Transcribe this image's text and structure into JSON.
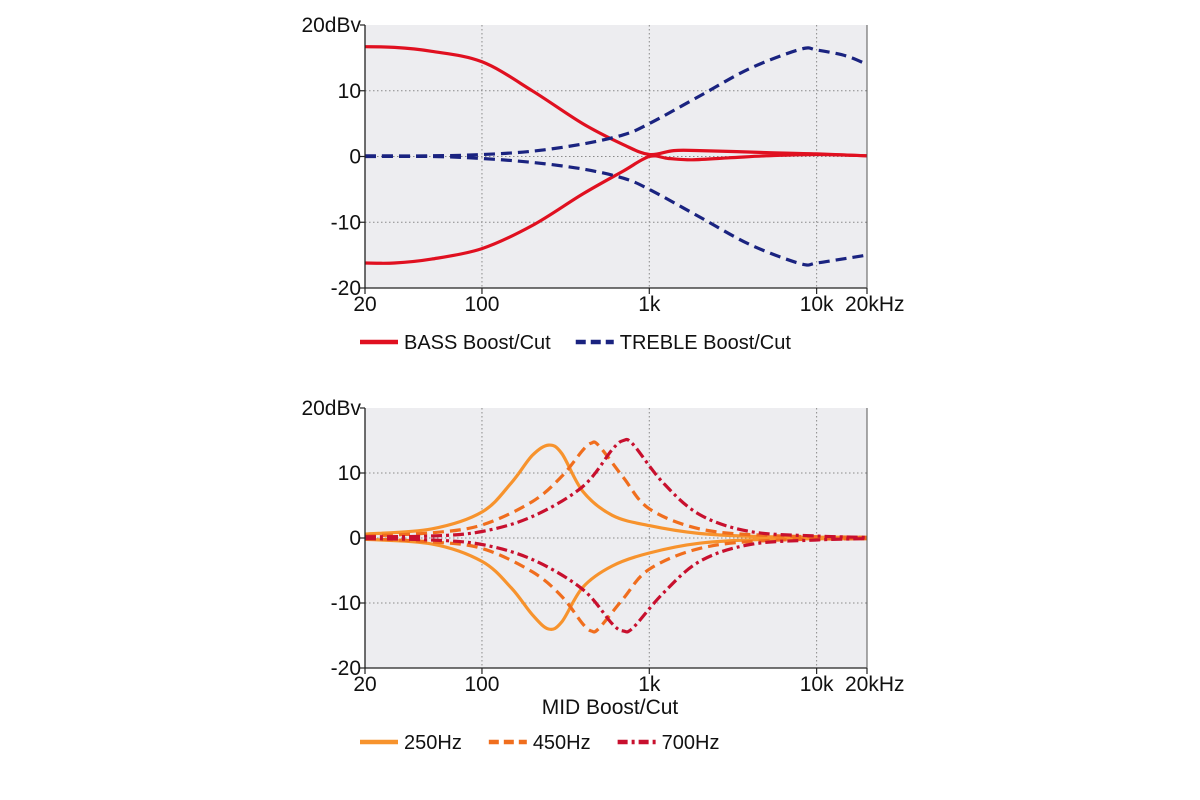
{
  "chart_data": [
    {
      "type": "line",
      "x_scale": "log",
      "xlim": [
        20,
        20000
      ],
      "ylim": [
        -20,
        20
      ],
      "x_ticks": [
        {
          "value": 20,
          "label": "20"
        },
        {
          "value": 100,
          "label": "100"
        },
        {
          "value": 1000,
          "label": "1k"
        },
        {
          "value": 10000,
          "label": "10k"
        },
        {
          "value": 20000,
          "label": "20kHz"
        }
      ],
      "y_ticks": [
        {
          "value": 20,
          "label": "20dBv"
        },
        {
          "value": 10,
          "label": "10"
        },
        {
          "value": 0,
          "label": "0"
        },
        {
          "value": -10,
          "label": "-10"
        },
        {
          "value": -20,
          "label": "-20"
        }
      ],
      "xlabel": "",
      "grid": true,
      "legend_placement": "bottom",
      "series": [
        {
          "name": "BASS Boost/Cut",
          "legend": true,
          "color": "#e01020",
          "style": "solid",
          "points": [
            [
              20,
              16.7
            ],
            [
              30,
              16.6
            ],
            [
              50,
              16.0
            ],
            [
              100,
              14.4
            ],
            [
              200,
              10.0
            ],
            [
              400,
              5.0
            ],
            [
              700,
              1.8
            ],
            [
              1000,
              0.3
            ],
            [
              1400,
              0.9
            ],
            [
              2000,
              0.9
            ],
            [
              5000,
              0.6
            ],
            [
              10000,
              0.4
            ],
            [
              20000,
              0.1
            ]
          ]
        },
        {
          "name": "BASS Boost/Cut",
          "legend": false,
          "color": "#e01020",
          "style": "solid",
          "points": [
            [
              20,
              -16.2
            ],
            [
              30,
              -16.2
            ],
            [
              50,
              -15.6
            ],
            [
              100,
              -14.0
            ],
            [
              200,
              -10.5
            ],
            [
              400,
              -5.7
            ],
            [
              700,
              -2.2
            ],
            [
              1000,
              0.0
            ],
            [
              1300,
              -0.3
            ],
            [
              1800,
              -0.5
            ],
            [
              3000,
              -0.2
            ],
            [
              5000,
              0.1
            ],
            [
              10000,
              0.3
            ],
            [
              20000,
              0.1
            ]
          ]
        },
        {
          "name": "TREBLE Boost/Cut",
          "legend": true,
          "color": "#1a2380",
          "style": "dashed",
          "points": [
            [
              20,
              0.1
            ],
            [
              50,
              0.1
            ],
            [
              100,
              0.3
            ],
            [
              200,
              0.8
            ],
            [
              400,
              1.9
            ],
            [
              700,
              3.3
            ],
            [
              1000,
              5.0
            ],
            [
              2000,
              9.2
            ],
            [
              4000,
              13.4
            ],
            [
              8000,
              16.3
            ],
            [
              10000,
              16.2
            ],
            [
              15000,
              15.3
            ],
            [
              20000,
              14.0
            ]
          ]
        },
        {
          "name": "TREBLE Boost/Cut",
          "legend": false,
          "color": "#1a2380",
          "style": "dashed",
          "points": [
            [
              20,
              0.0
            ],
            [
              50,
              0.0
            ],
            [
              100,
              -0.3
            ],
            [
              200,
              -0.9
            ],
            [
              400,
              -1.9
            ],
            [
              700,
              -3.3
            ],
            [
              1000,
              -5.0
            ],
            [
              2000,
              -9.2
            ],
            [
              4000,
              -13.4
            ],
            [
              8000,
              -16.3
            ],
            [
              10000,
              -16.2
            ],
            [
              15000,
              -15.5
            ],
            [
              20000,
              -15.0
            ]
          ]
        }
      ]
    },
    {
      "type": "line",
      "x_scale": "log",
      "xlim": [
        20,
        20000
      ],
      "ylim": [
        -20,
        20
      ],
      "x_ticks": [
        {
          "value": 20,
          "label": "20"
        },
        {
          "value": 100,
          "label": "100"
        },
        {
          "value": 1000,
          "label": "1k"
        },
        {
          "value": 10000,
          "label": "10k"
        },
        {
          "value": 20000,
          "label": "20kHz"
        }
      ],
      "y_ticks": [
        {
          "value": 20,
          "label": "20dBv"
        },
        {
          "value": 10,
          "label": "10"
        },
        {
          "value": 0,
          "label": "0"
        },
        {
          "value": -10,
          "label": "-10"
        },
        {
          "value": -20,
          "label": "-20"
        }
      ],
      "xlabel": "MID Boost/Cut",
      "grid": true,
      "legend_placement": "bottom",
      "series": [
        {
          "name": "250Hz",
          "legend": true,
          "color": "#f7932d",
          "style": "solid",
          "points": [
            [
              20,
              0.6
            ],
            [
              50,
              1.4
            ],
            [
              100,
              4.0
            ],
            [
              150,
              8.5
            ],
            [
              200,
              12.7
            ],
            [
              250,
              14.3
            ],
            [
              300,
              13.0
            ],
            [
              400,
              7.2
            ],
            [
              600,
              3.5
            ],
            [
              1000,
              1.9
            ],
            [
              2000,
              0.7
            ],
            [
              5000,
              0.2
            ],
            [
              20000,
              0.1
            ]
          ]
        },
        {
          "name": "250Hz",
          "legend": false,
          "color": "#f7932d",
          "style": "solid",
          "points": [
            [
              20,
              -0.2
            ],
            [
              50,
              -0.9
            ],
            [
              100,
              -3.6
            ],
            [
              150,
              -7.7
            ],
            [
              200,
              -11.8
            ],
            [
              250,
              -14.0
            ],
            [
              300,
              -12.9
            ],
            [
              400,
              -7.6
            ],
            [
              600,
              -4.3
            ],
            [
              1000,
              -2.3
            ],
            [
              2000,
              -0.8
            ],
            [
              5000,
              -0.2
            ],
            [
              20000,
              -0.1
            ]
          ]
        },
        {
          "name": "450Hz",
          "legend": true,
          "color": "#f06e1e",
          "style": "dashed",
          "points": [
            [
              20,
              0.3
            ],
            [
              50,
              0.8
            ],
            [
              100,
              2.0
            ],
            [
              200,
              5.6
            ],
            [
              300,
              9.5
            ],
            [
              400,
              13.5
            ],
            [
              450,
              14.6
            ],
            [
              500,
              14.2
            ],
            [
              700,
              9.3
            ],
            [
              1000,
              4.5
            ],
            [
              2000,
              1.4
            ],
            [
              5000,
              0.4
            ],
            [
              20000,
              0.1
            ]
          ]
        },
        {
          "name": "450Hz",
          "legend": false,
          "color": "#f06e1e",
          "style": "dashed",
          "points": [
            [
              20,
              -0.1
            ],
            [
              50,
              -0.6
            ],
            [
              100,
              -1.6
            ],
            [
              200,
              -5.2
            ],
            [
              300,
              -9.0
            ],
            [
              400,
              -13.2
            ],
            [
              450,
              -14.3
            ],
            [
              500,
              -13.9
            ],
            [
              700,
              -9.3
            ],
            [
              1000,
              -4.8
            ],
            [
              2000,
              -1.6
            ],
            [
              5000,
              -0.4
            ],
            [
              20000,
              -0.1
            ]
          ]
        },
        {
          "name": "700Hz",
          "legend": true,
          "color": "#c8102e",
          "style": "dashdot",
          "points": [
            [
              20,
              0.2
            ],
            [
              50,
              0.3
            ],
            [
              100,
              1.0
            ],
            [
              200,
              3.3
            ],
            [
              400,
              7.9
            ],
            [
              600,
              13.6
            ],
            [
              700,
              15.0
            ],
            [
              800,
              14.4
            ],
            [
              1200,
              8.6
            ],
            [
              2000,
              3.6
            ],
            [
              4000,
              1.0
            ],
            [
              10000,
              0.3
            ],
            [
              20000,
              0.1
            ]
          ]
        },
        {
          "name": "700Hz",
          "legend": false,
          "color": "#c8102e",
          "style": "dashdot",
          "points": [
            [
              20,
              -0.1
            ],
            [
              50,
              -0.3
            ],
            [
              100,
              -1.0
            ],
            [
              200,
              -3.3
            ],
            [
              400,
              -7.9
            ],
            [
              600,
              -13.2
            ],
            [
              700,
              -14.3
            ],
            [
              800,
              -13.8
            ],
            [
              1200,
              -8.6
            ],
            [
              2000,
              -3.6
            ],
            [
              4000,
              -1.0
            ],
            [
              10000,
              -0.3
            ],
            [
              20000,
              -0.1
            ]
          ]
        }
      ]
    }
  ]
}
